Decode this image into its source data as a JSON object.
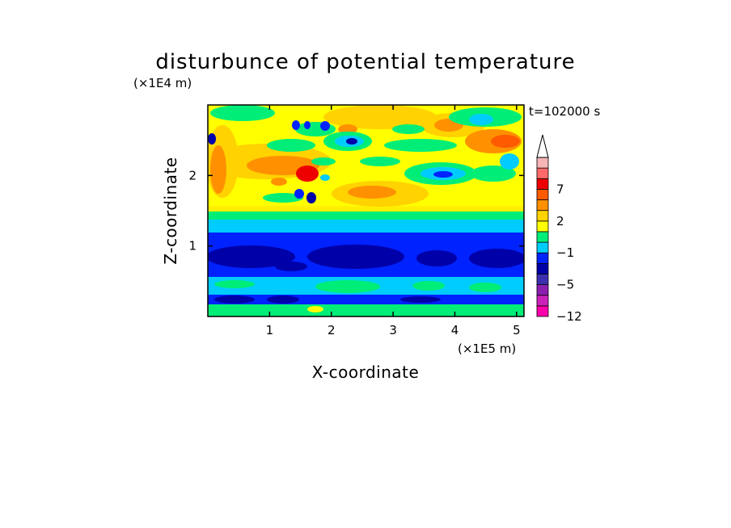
{
  "chart_data": {
    "type": "heatmap",
    "title": "disturbunce of potential temperature",
    "xlabel": "X-coordinate",
    "ylabel": "Z-coordinate",
    "x_scale_label": "(×1E5 m)",
    "y_scale_label": "(×1E4 m)",
    "time_label": "t=102000 s",
    "xlim": [
      0,
      5.12
    ],
    "ylim": [
      0,
      3.0
    ],
    "x_ticks": [
      "1",
      "2",
      "3",
      "4",
      "5"
    ],
    "x_tick_values": [
      1,
      2,
      3,
      4,
      5
    ],
    "y_ticks": [
      "1",
      "2"
    ],
    "y_tick_values": [
      1,
      2
    ],
    "colorbar": {
      "tick_labels": [
        "7",
        "2",
        "−1",
        "−5",
        "−12"
      ],
      "extend": "max",
      "colors": [
        "#ff00aa",
        "#cc22bb",
        "#8a1fb0",
        "#3d2fb0",
        "#0000a8",
        "#0022ff",
        "#00ccff",
        "#00ee77",
        "#ffff00",
        "#ffd200",
        "#ff9000",
        "#ff5a00",
        "#ee0000",
        "#ff6b6b",
        "#f7b5b5"
      ]
    },
    "layers": [
      {
        "z_range": [
          0.0,
          0.12
        ],
        "level": "green"
      },
      {
        "z_range": [
          0.12,
          0.28
        ],
        "level": "dark-blue"
      },
      {
        "z_range": [
          0.28,
          0.55
        ],
        "level": "cyan"
      },
      {
        "z_range": [
          0.55,
          0.9
        ],
        "level": "blue"
      },
      {
        "z_range": [
          0.65,
          0.8
        ],
        "level": "dark-blue"
      },
      {
        "z_range": [
          0.9,
          1.05
        ],
        "level": "blue"
      },
      {
        "z_range": [
          1.05,
          1.35
        ],
        "level": "cyan"
      },
      {
        "z_range": [
          1.35,
          3.0
        ],
        "level": "yellow-orange"
      }
    ],
    "grid": false
  }
}
